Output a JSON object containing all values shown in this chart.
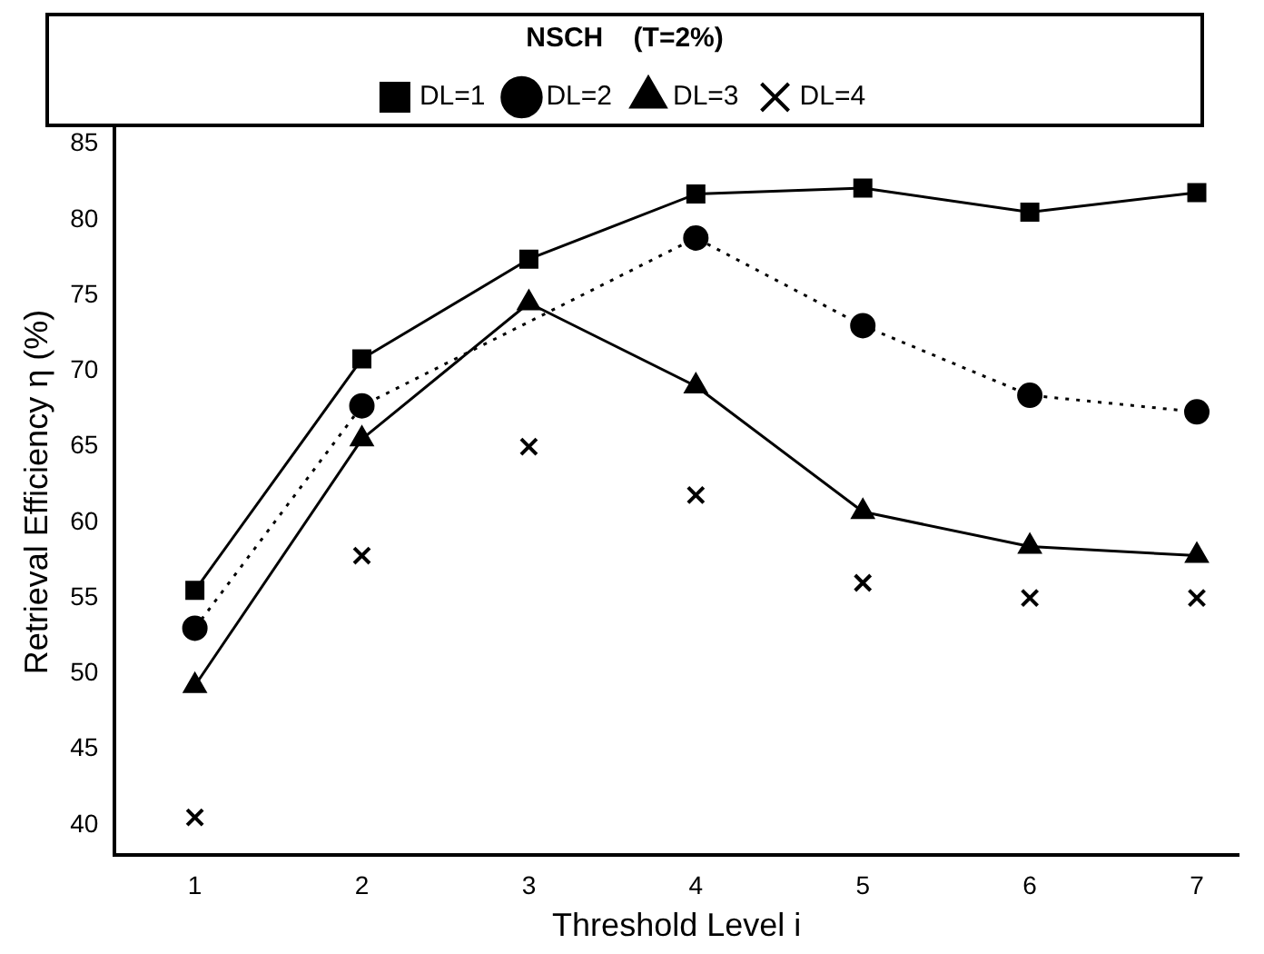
{
  "chart_data": {
    "type": "line",
    "legend_title": "NSCH    (T=2%)",
    "xlabel": "Threshold Level i",
    "ylabel": "Retrieval Efficiency η (%)",
    "x": [
      1,
      2,
      3,
      4,
      5,
      6,
      7
    ],
    "xlim": [
      0.52,
      7.25
    ],
    "xticks": [
      1,
      2,
      3,
      4,
      5,
      6,
      7
    ],
    "ylim": [
      38,
      86
    ],
    "yticks": [
      40,
      45,
      50,
      55,
      60,
      65,
      70,
      75,
      80,
      85
    ],
    "grid": false,
    "legend": "top",
    "series": [
      {
        "name": "DL=1",
        "color": "#000000",
        "marker": "square",
        "line_style": "solid",
        "values": [
          55.5,
          70.8,
          77.4,
          81.7,
          82.1,
          80.5,
          81.8
        ]
      },
      {
        "name": "DL=2",
        "color": "#000000",
        "marker": "circle",
        "line_style": "dotted",
        "values": [
          53,
          67.7,
          null,
          78.8,
          73,
          68.4,
          67.3
        ]
      },
      {
        "name": "DL=3",
        "color": "#000000",
        "marker": "triangle",
        "line_style": "solid",
        "values": [
          49.2,
          65.5,
          74.5,
          69,
          60.7,
          58.4,
          57.8
        ]
      },
      {
        "name": "DL=4",
        "type": "scatter",
        "color": "#000000",
        "marker": "cross",
        "values": [
          40.5,
          57.8,
          65,
          61.8,
          56,
          55,
          55
        ]
      }
    ]
  }
}
